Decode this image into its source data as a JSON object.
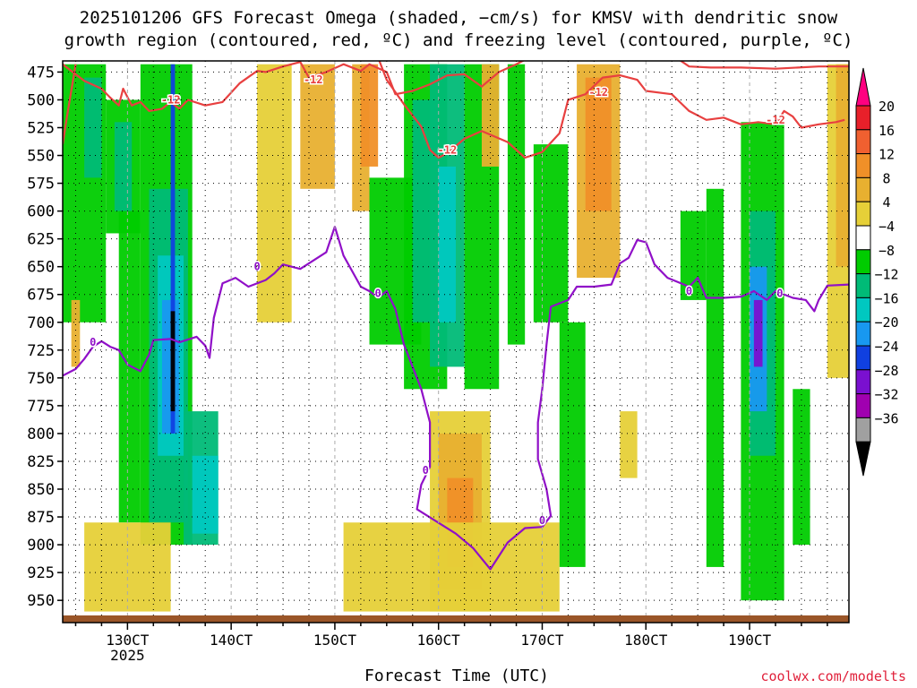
{
  "chart_data": {
    "type": "heatmap",
    "title_line1": "2025101206 GFS Forecast Omega (shaded, −cm/s) for KMSV with dendritic snow",
    "title_line2": "growth region (contoured, red, ºC) and freezing level (contoured, purple, ºC)",
    "xlabel": "Forecast Time (UTC)",
    "credit": "coolwx.com/modelts",
    "x_ticks": [
      "130CT",
      "140CT",
      "150CT",
      "160CT",
      "170CT",
      "180CT",
      "190CT"
    ],
    "x_tick_hours": [
      30,
      54,
      78,
      102,
      126,
      150,
      174
    ],
    "x_sublabel": "2025",
    "xlim": [
      15,
      197
    ],
    "y_ticks": [
      475,
      500,
      525,
      550,
      575,
      600,
      625,
      650,
      675,
      700,
      725,
      750,
      775,
      800,
      825,
      850,
      875,
      900,
      925,
      950
    ],
    "ylim": [
      465,
      970
    ],
    "colorbar": {
      "labels": [
        "20",
        "16",
        "12",
        "8",
        "4",
        "−4",
        "−8",
        "−12",
        "−16",
        "−20",
        "−24",
        "−28",
        "−32",
        "−36"
      ],
      "colors": [
        "#ff0080",
        "#e8202a",
        "#f06030",
        "#f09028",
        "#e8b030",
        "#e6d038",
        "#ffffff",
        "#00cc00",
        "#00bb77",
        "#00c8c0",
        "#1898f0",
        "#1040e0",
        "#7a10d0",
        "#a000b0",
        "#a0a0a0",
        "#000000"
      ]
    },
    "freezing_level": {
      "contour_label": "0",
      "color": "#9010c8",
      "points": [
        [
          15,
          748
        ],
        [
          18,
          742
        ],
        [
          20,
          733
        ],
        [
          22,
          722
        ],
        [
          24,
          717
        ],
        [
          26,
          722
        ],
        [
          28,
          725
        ],
        [
          30,
          738
        ],
        [
          33,
          744
        ],
        [
          35,
          729
        ],
        [
          36,
          716
        ],
        [
          40,
          715
        ],
        [
          42,
          718
        ],
        [
          46,
          713
        ],
        [
          48,
          721
        ],
        [
          49,
          732
        ],
        [
          50,
          696
        ],
        [
          52,
          665
        ],
        [
          55,
          660
        ],
        [
          58,
          668
        ],
        [
          62,
          662
        ],
        [
          64,
          656
        ],
        [
          66,
          648
        ],
        [
          70,
          652
        ],
        [
          76,
          637
        ],
        [
          78,
          614
        ],
        [
          80,
          640
        ],
        [
          84,
          668
        ],
        [
          86,
          672
        ],
        [
          88,
          678
        ],
        [
          90,
          672
        ],
        [
          92,
          688
        ],
        [
          94,
          720
        ],
        [
          98,
          760
        ],
        [
          100,
          790
        ],
        [
          100,
          830
        ],
        [
          98,
          846
        ],
        [
          97,
          868
        ],
        [
          106,
          890
        ],
        [
          110,
          903
        ],
        [
          114,
          922
        ],
        [
          118,
          898
        ],
        [
          122,
          885
        ],
        [
          126,
          884
        ],
        [
          128,
          874
        ],
        [
          127,
          850
        ],
        [
          125,
          823
        ],
        [
          125,
          790
        ],
        [
          126,
          760
        ],
        [
          127,
          720
        ],
        [
          128,
          686
        ],
        [
          132,
          680
        ],
        [
          134,
          668
        ],
        [
          138,
          668
        ],
        [
          142,
          666
        ],
        [
          144,
          647
        ],
        [
          146,
          642
        ],
        [
          148,
          626
        ],
        [
          150,
          628
        ],
        [
          152,
          648
        ],
        [
          155,
          660
        ],
        [
          160,
          668
        ],
        [
          162,
          660
        ],
        [
          164,
          678
        ],
        [
          168,
          678
        ],
        [
          172,
          677
        ],
        [
          175,
          672
        ],
        [
          178,
          680
        ],
        [
          180,
          672
        ],
        [
          184,
          678
        ],
        [
          187,
          680
        ],
        [
          189,
          690
        ],
        [
          190,
          680
        ],
        [
          192,
          667
        ],
        [
          197,
          666
        ]
      ]
    },
    "dgz_upper": {
      "contour_label": "-12",
      "color": "#e84040",
      "points": [
        [
          15,
          468
        ],
        [
          20,
          483
        ],
        [
          24,
          490
        ],
        [
          26,
          498
        ],
        [
          28,
          505
        ],
        [
          29,
          490
        ],
        [
          31,
          505
        ],
        [
          33,
          502
        ],
        [
          35,
          510
        ],
        [
          38,
          508
        ],
        [
          40,
          502
        ],
        [
          42,
          508
        ],
        [
          44,
          500
        ],
        [
          48,
          505
        ],
        [
          52,
          502
        ],
        [
          56,
          485
        ],
        [
          60,
          474
        ],
        [
          62,
          475
        ],
        [
          66,
          470
        ],
        [
          70,
          466
        ],
        [
          72,
          480
        ],
        [
          76,
          475
        ],
        [
          80,
          468
        ],
        [
          84,
          474
        ],
        [
          86,
          468
        ],
        [
          90,
          475
        ],
        [
          92,
          495
        ],
        [
          96,
          492
        ],
        [
          100,
          486
        ],
        [
          104,
          478
        ],
        [
          108,
          477
        ],
        [
          112,
          488
        ],
        [
          116,
          475
        ],
        [
          120,
          468
        ],
        [
          124,
          460
        ]
      ]
    },
    "dgz_lower": {
      "contour_label": "-12",
      "color": "#e84040",
      "points": [
        [
          15,
          540
        ],
        [
          16,
          515
        ],
        [
          18,
          468
        ]
      ]
    },
    "dgz_right": {
      "contour_label": "-12",
      "color": "#e84040",
      "points": [
        [
          88,
          462
        ],
        [
          90,
          482
        ],
        [
          94,
          504
        ],
        [
          98,
          524
        ],
        [
          100,
          545
        ],
        [
          102,
          552
        ],
        [
          104,
          548
        ],
        [
          108,
          535
        ],
        [
          112,
          528
        ],
        [
          118,
          538
        ],
        [
          122,
          552
        ],
        [
          126,
          547
        ],
        [
          130,
          530
        ],
        [
          132,
          500
        ],
        [
          136,
          495
        ],
        [
          140,
          480
        ],
        [
          144,
          478
        ],
        [
          148,
          482
        ],
        [
          150,
          492
        ],
        [
          156,
          495
        ],
        [
          160,
          510
        ],
        [
          164,
          518
        ],
        [
          168,
          516
        ],
        [
          172,
          522
        ],
        [
          176,
          520
        ],
        [
          180,
          522
        ],
        [
          182,
          510
        ],
        [
          184,
          515
        ],
        [
          186,
          525
        ],
        [
          190,
          522
        ],
        [
          194,
          520
        ],
        [
          196,
          518
        ]
      ]
    },
    "dgz_topright": {
      "contour_label": "-12",
      "color": "#e84040",
      "points": [
        [
          157,
          462
        ],
        [
          160,
          470
        ],
        [
          165,
          471
        ],
        [
          172,
          471
        ],
        [
          180,
          472
        ],
        [
          190,
          470
        ],
        [
          197,
          470
        ]
      ]
    },
    "omega_cells": [
      {
        "x": [
          15,
          25
        ],
        "y": [
          468,
          700
        ],
        "v": -8
      },
      {
        "x": [
          20,
          24
        ],
        "y": [
          480,
          570
        ],
        "v": -12
      },
      {
        "x": [
          17,
          19
        ],
        "y": [
          680,
          740
        ],
        "v": 8
      },
      {
        "x": [
          25,
          33
        ],
        "y": [
          500,
          620
        ],
        "v": -8
      },
      {
        "x": [
          27,
          31
        ],
        "y": [
          520,
          600
        ],
        "v": -12
      },
      {
        "x": [
          28,
          33
        ],
        "y": [
          600,
          880
        ],
        "v": -8
      },
      {
        "x": [
          33,
          45
        ],
        "y": [
          468,
          900
        ],
        "v": -8
      },
      {
        "x": [
          35,
          44
        ],
        "y": [
          580,
          880
        ],
        "v": -12
      },
      {
        "x": [
          37,
          43
        ],
        "y": [
          640,
          820
        ],
        "v": -16
      },
      {
        "x": [
          38,
          42
        ],
        "y": [
          680,
          800
        ],
        "v": -20
      },
      {
        "x": [
          40,
          41
        ],
        "y": [
          468,
          800
        ],
        "v": -24
      },
      {
        "x": [
          40,
          41
        ],
        "y": [
          690,
          780
        ],
        "v": -36
      },
      {
        "x": [
          43,
          51
        ],
        "y": [
          780,
          900
        ],
        "v": -12
      },
      {
        "x": [
          45,
          51
        ],
        "y": [
          820,
          890
        ],
        "v": -16
      },
      {
        "x": [
          20,
          40
        ],
        "y": [
          880,
          960
        ],
        "v": 4
      },
      {
        "x": [
          60,
          68
        ],
        "y": [
          468,
          700
        ],
        "v": 4
      },
      {
        "x": [
          70,
          78
        ],
        "y": [
          468,
          580
        ],
        "v": 8
      },
      {
        "x": [
          82,
          86
        ],
        "y": [
          468,
          600
        ],
        "v": 8
      },
      {
        "x": [
          84,
          88
        ],
        "y": [
          468,
          560
        ],
        "v": 12
      },
      {
        "x": [
          86,
          98
        ],
        "y": [
          570,
          720
        ],
        "v": -8
      },
      {
        "x": [
          94,
          104
        ],
        "y": [
          468,
          760
        ],
        "v": -8
      },
      {
        "x": [
          96,
          102
        ],
        "y": [
          500,
          700
        ],
        "v": -12
      },
      {
        "x": [
          100,
          108
        ],
        "y": [
          468,
          740
        ],
        "v": -12
      },
      {
        "x": [
          102,
          106
        ],
        "y": [
          560,
          700
        ],
        "v": -16
      },
      {
        "x": [
          108,
          116
        ],
        "y": [
          468,
          760
        ],
        "v": -8
      },
      {
        "x": [
          112,
          116
        ],
        "y": [
          468,
          560
        ],
        "v": 8
      },
      {
        "x": [
          118,
          122
        ],
        "y": [
          468,
          720
        ],
        "v": -8
      },
      {
        "x": [
          124,
          132
        ],
        "y": [
          540,
          700
        ],
        "v": -8
      },
      {
        "x": [
          100,
          114
        ],
        "y": [
          780,
          960
        ],
        "v": 4
      },
      {
        "x": [
          102,
          112
        ],
        "y": [
          800,
          940
        ],
        "v": 8
      },
      {
        "x": [
          104,
          110
        ],
        "y": [
          840,
          920
        ],
        "v": 12
      },
      {
        "x": [
          80,
          130
        ],
        "y": [
          880,
          960
        ],
        "v": 4
      },
      {
        "x": [
          134,
          144
        ],
        "y": [
          468,
          660
        ],
        "v": 8
      },
      {
        "x": [
          136,
          142
        ],
        "y": [
          480,
          600
        ],
        "v": 12
      },
      {
        "x": [
          130,
          136
        ],
        "y": [
          700,
          920
        ],
        "v": -8
      },
      {
        "x": [
          144,
          148
        ],
        "y": [
          780,
          840
        ],
        "v": 4
      },
      {
        "x": [
          158,
          164
        ],
        "y": [
          600,
          680
        ],
        "v": -8
      },
      {
        "x": [
          164,
          168
        ],
        "y": [
          580,
          920
        ],
        "v": -8
      },
      {
        "x": [
          172,
          182
        ],
        "y": [
          520,
          950
        ],
        "v": -8
      },
      {
        "x": [
          174,
          180
        ],
        "y": [
          600,
          820
        ],
        "v": -12
      },
      {
        "x": [
          174,
          178
        ],
        "y": [
          650,
          780
        ],
        "v": -20
      },
      {
        "x": [
          175,
          177
        ],
        "y": [
          680,
          740
        ],
        "v": -28
      },
      {
        "x": [
          184,
          188
        ],
        "y": [
          760,
          900
        ],
        "v": -8
      },
      {
        "x": [
          192,
          197
        ],
        "y": [
          468,
          750
        ],
        "v": 4
      },
      {
        "x": [
          194,
          197
        ],
        "y": [
          468,
          650
        ],
        "v": 8
      }
    ]
  }
}
